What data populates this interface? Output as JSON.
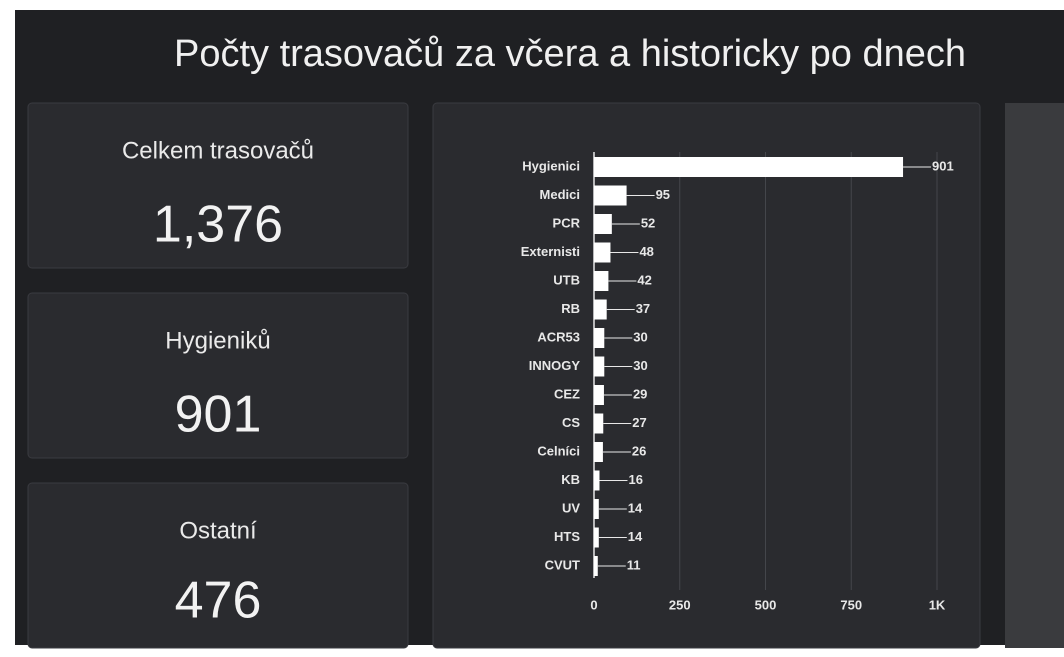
{
  "header": {
    "title": "Počty trasovačů za včera a historicky po dnech"
  },
  "cards": [
    {
      "label": "Celkem trasovačů",
      "value": "1,376"
    },
    {
      "label": "Hygieniků",
      "value": "901"
    },
    {
      "label": "Ostatní",
      "value": "476"
    }
  ],
  "chart_data": {
    "type": "bar",
    "orientation": "horizontal",
    "color": "#ffffff",
    "categories": [
      "Hygienici",
      "Medici",
      "PCR",
      "Externisti",
      "UTB",
      "RB",
      "ACR53",
      "INNOGY",
      "CEZ",
      "CS",
      "Celníci",
      "KB",
      "UV",
      "HTS",
      "CVUT"
    ],
    "values": [
      901,
      95,
      52,
      48,
      42,
      37,
      30,
      30,
      29,
      27,
      26,
      16,
      14,
      14,
      11
    ],
    "xlim": [
      0,
      1000
    ],
    "xticks": [
      0,
      250,
      500,
      750,
      {
        "value": 1000,
        "label": "1K"
      }
    ],
    "grid": true
  }
}
